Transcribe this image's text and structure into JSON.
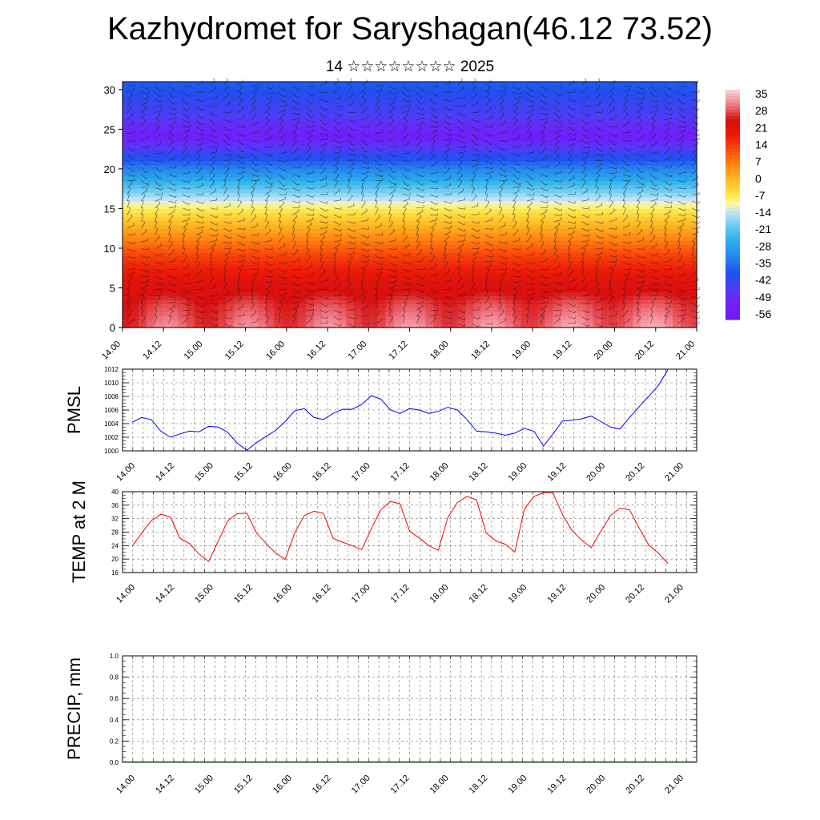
{
  "title": "Kazhydromet for Saryshagan(46.12 73.52)",
  "subtitle": "14 ☆☆☆☆☆☆☆☆ 2025",
  "chart_data": [
    {
      "type": "heatmap",
      "ylim": [
        0,
        31
      ],
      "yticks": [
        "0",
        "5",
        "10",
        "15",
        "20",
        "25",
        "30"
      ],
      "xticks": [
        "14.00",
        "14.12",
        "15.00",
        "15.12",
        "16.00",
        "16.12",
        "17.00",
        "17.12",
        "18.00",
        "18.12",
        "19.00",
        "19.12",
        "20.00",
        "20.12",
        "21.00"
      ],
      "colorbar_labels": [
        "35",
        "28",
        "21",
        "14",
        "7",
        "0",
        "-7",
        "-14",
        "-21",
        "-28",
        "-35",
        "-42",
        "-49",
        "-56"
      ],
      "colorbar_range": [
        -63,
        42
      ],
      "profile_levels": [
        0,
        3,
        6,
        9,
        12,
        15,
        18,
        21,
        24,
        27,
        31
      ],
      "profile_values": [
        33,
        30,
        24,
        16,
        5,
        -7,
        -24,
        -40,
        -57,
        -48,
        -40
      ]
    },
    {
      "type": "line",
      "ylabel": "PMSL",
      "ylim": [
        1000,
        1012
      ],
      "yticks": [
        "1000",
        "1002",
        "1004",
        "1006",
        "1008",
        "1010",
        "1012"
      ],
      "xticks": [
        "14.00",
        "14.12",
        "15.00",
        "15.12",
        "16.00",
        "16.12",
        "17.00",
        "17.12",
        "18.00",
        "18.12",
        "19.00",
        "19.12",
        "20.00",
        "20.12",
        "21.00"
      ],
      "color": "#0000ff",
      "values": [
        1004.2,
        1004.9,
        1004.6,
        1002.9,
        1002.0,
        1002.5,
        1002.9,
        1002.8,
        1003.6,
        1003.5,
        1002.7,
        1001.1,
        1000.1,
        1001.2,
        1002.1,
        1003.0,
        1004.3,
        1005.9,
        1006.2,
        1004.9,
        1004.6,
        1005.5,
        1006.1,
        1006.1,
        1006.8,
        1008.1,
        1007.6,
        1006.0,
        1005.5,
        1006.2,
        1006.0,
        1005.5,
        1005.8,
        1006.4,
        1006.0,
        1004.6,
        1002.9,
        1002.8,
        1002.6,
        1002.3,
        1002.6,
        1003.3,
        1002.9,
        1000.7,
        1002.5,
        1004.4,
        1004.5,
        1004.7,
        1005.1,
        1004.3,
        1003.5,
        1003.2,
        1004.9,
        1006.5,
        1008.0,
        1009.6,
        1011.9
      ]
    },
    {
      "type": "line",
      "ylabel": "TEMP at 2 M",
      "ylim": [
        16,
        40
      ],
      "yticks": [
        "16",
        "20",
        "24",
        "28",
        "32",
        "36",
        "40"
      ],
      "xticks": [
        "14.00",
        "14.12",
        "15.00",
        "15.12",
        "16.00",
        "16.12",
        "17.00",
        "17.12",
        "18.00",
        "18.12",
        "19.00",
        "19.12",
        "20.00",
        "20.12",
        "21.00"
      ],
      "color": "#ff0000",
      "values": [
        23.8,
        27.7,
        31.4,
        33.3,
        32.5,
        26.2,
        24.6,
        21.5,
        19.3,
        25.3,
        31.4,
        33.5,
        33.6,
        27.8,
        24.6,
        21.8,
        19.9,
        27.8,
        32.9,
        34.2,
        33.6,
        26.2,
        25.0,
        24.0,
        22.8,
        29.0,
        34.7,
        37.1,
        36.4,
        28.3,
        26.3,
        24.0,
        22.6,
        32.3,
        36.8,
        38.6,
        37.6,
        27.8,
        25.4,
        24.4,
        22.1,
        34.8,
        38.6,
        39.7,
        39.6,
        33.1,
        28.4,
        25.6,
        23.4,
        28.3,
        32.9,
        35.1,
        34.6,
        29.2,
        24.2,
        21.8,
        18.7
      ]
    },
    {
      "type": "bar",
      "ylabel": "PRECIP, mm",
      "ylim": [
        0,
        1
      ],
      "yticks": [
        "0.0",
        "0.2",
        "0.4",
        "0.6",
        "0.8",
        "1.0"
      ],
      "xticks": [
        "14.00",
        "14.12",
        "15.00",
        "15.12",
        "16.00",
        "16.12",
        "17.00",
        "17.12",
        "18.00",
        "18.12",
        "19.00",
        "19.12",
        "20.00",
        "20.12",
        "21.00"
      ],
      "values": [
        0,
        0,
        0,
        0,
        0,
        0,
        0,
        0,
        0,
        0,
        0,
        0,
        0,
        0,
        0,
        0,
        0,
        0,
        0,
        0,
        0,
        0,
        0,
        0,
        0,
        0,
        0,
        0,
        0,
        0,
        0,
        0,
        0,
        0,
        0,
        0,
        0,
        0,
        0,
        0,
        0,
        0,
        0,
        0,
        0,
        0,
        0,
        0,
        0,
        0,
        0,
        0,
        0,
        0,
        0,
        0,
        0
      ]
    }
  ]
}
